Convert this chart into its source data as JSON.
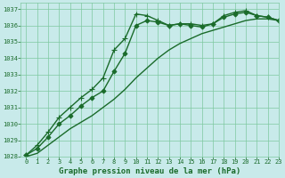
{
  "title": "Graphe pression niveau de la mer (hPa)",
  "background_color": "#c8eaea",
  "grid_color": "#7ec8a0",
  "line_color": "#1a6b2a",
  "xlim": [
    -0.5,
    23
  ],
  "ylim": [
    1028,
    1037.4
  ],
  "yticks": [
    1028,
    1029,
    1030,
    1031,
    1032,
    1033,
    1034,
    1035,
    1036,
    1037
  ],
  "xticks": [
    0,
    1,
    2,
    3,
    4,
    5,
    6,
    7,
    8,
    9,
    10,
    11,
    12,
    13,
    14,
    15,
    16,
    17,
    18,
    19,
    20,
    21,
    22,
    23
  ],
  "series": [
    {
      "x": [
        0,
        1,
        2,
        3,
        4,
        5,
        6,
        7,
        8,
        9,
        10,
        11,
        12,
        13,
        14,
        15,
        16,
        17,
        18,
        19,
        20,
        21,
        22,
        23
      ],
      "y": [
        1028.1,
        1028.7,
        1029.5,
        1030.4,
        1031.0,
        1031.6,
        1032.1,
        1032.8,
        1034.5,
        1035.2,
        1036.7,
        1036.6,
        1036.3,
        1036.0,
        1036.1,
        1036.1,
        1036.0,
        1036.1,
        1036.6,
        1036.8,
        1036.9,
        1036.6,
        1036.5,
        1036.3
      ],
      "marker": "+",
      "markersize": 4,
      "linewidth": 1.0
    },
    {
      "x": [
        0,
        1,
        2,
        3,
        4,
        5,
        6,
        7,
        8,
        9,
        10,
        11,
        12,
        13,
        14,
        15,
        16,
        17,
        18,
        19,
        20,
        21,
        22,
        23
      ],
      "y": [
        1028.1,
        1028.5,
        1029.2,
        1030.0,
        1030.5,
        1031.1,
        1031.6,
        1032.0,
        1033.2,
        1034.3,
        1036.0,
        1036.3,
        1036.2,
        1036.0,
        1036.1,
        1036.0,
        1035.9,
        1036.1,
        1036.5,
        1036.7,
        1036.8,
        1036.6,
        1036.5,
        1036.3
      ],
      "marker": "D",
      "markersize": 2.5,
      "linewidth": 1.0
    },
    {
      "x": [
        0,
        1,
        2,
        3,
        4,
        5,
        6,
        7,
        8,
        9,
        10,
        11,
        12,
        13,
        14,
        15,
        16,
        17,
        18,
        19,
        20,
        21,
        22,
        23
      ],
      "y": [
        1028.0,
        1028.2,
        1028.7,
        1029.2,
        1029.7,
        1030.1,
        1030.5,
        1031.0,
        1031.5,
        1032.1,
        1032.8,
        1033.4,
        1034.0,
        1034.5,
        1034.9,
        1035.2,
        1035.5,
        1035.7,
        1035.9,
        1036.1,
        1036.3,
        1036.4,
        1036.4,
        1036.3
      ],
      "marker": null,
      "markersize": 0,
      "linewidth": 1.0
    }
  ],
  "title_fontsize": 6.5,
  "tick_fontsize": 5.0,
  "title_color": "#1a6b2a",
  "title_fontweight": "bold"
}
